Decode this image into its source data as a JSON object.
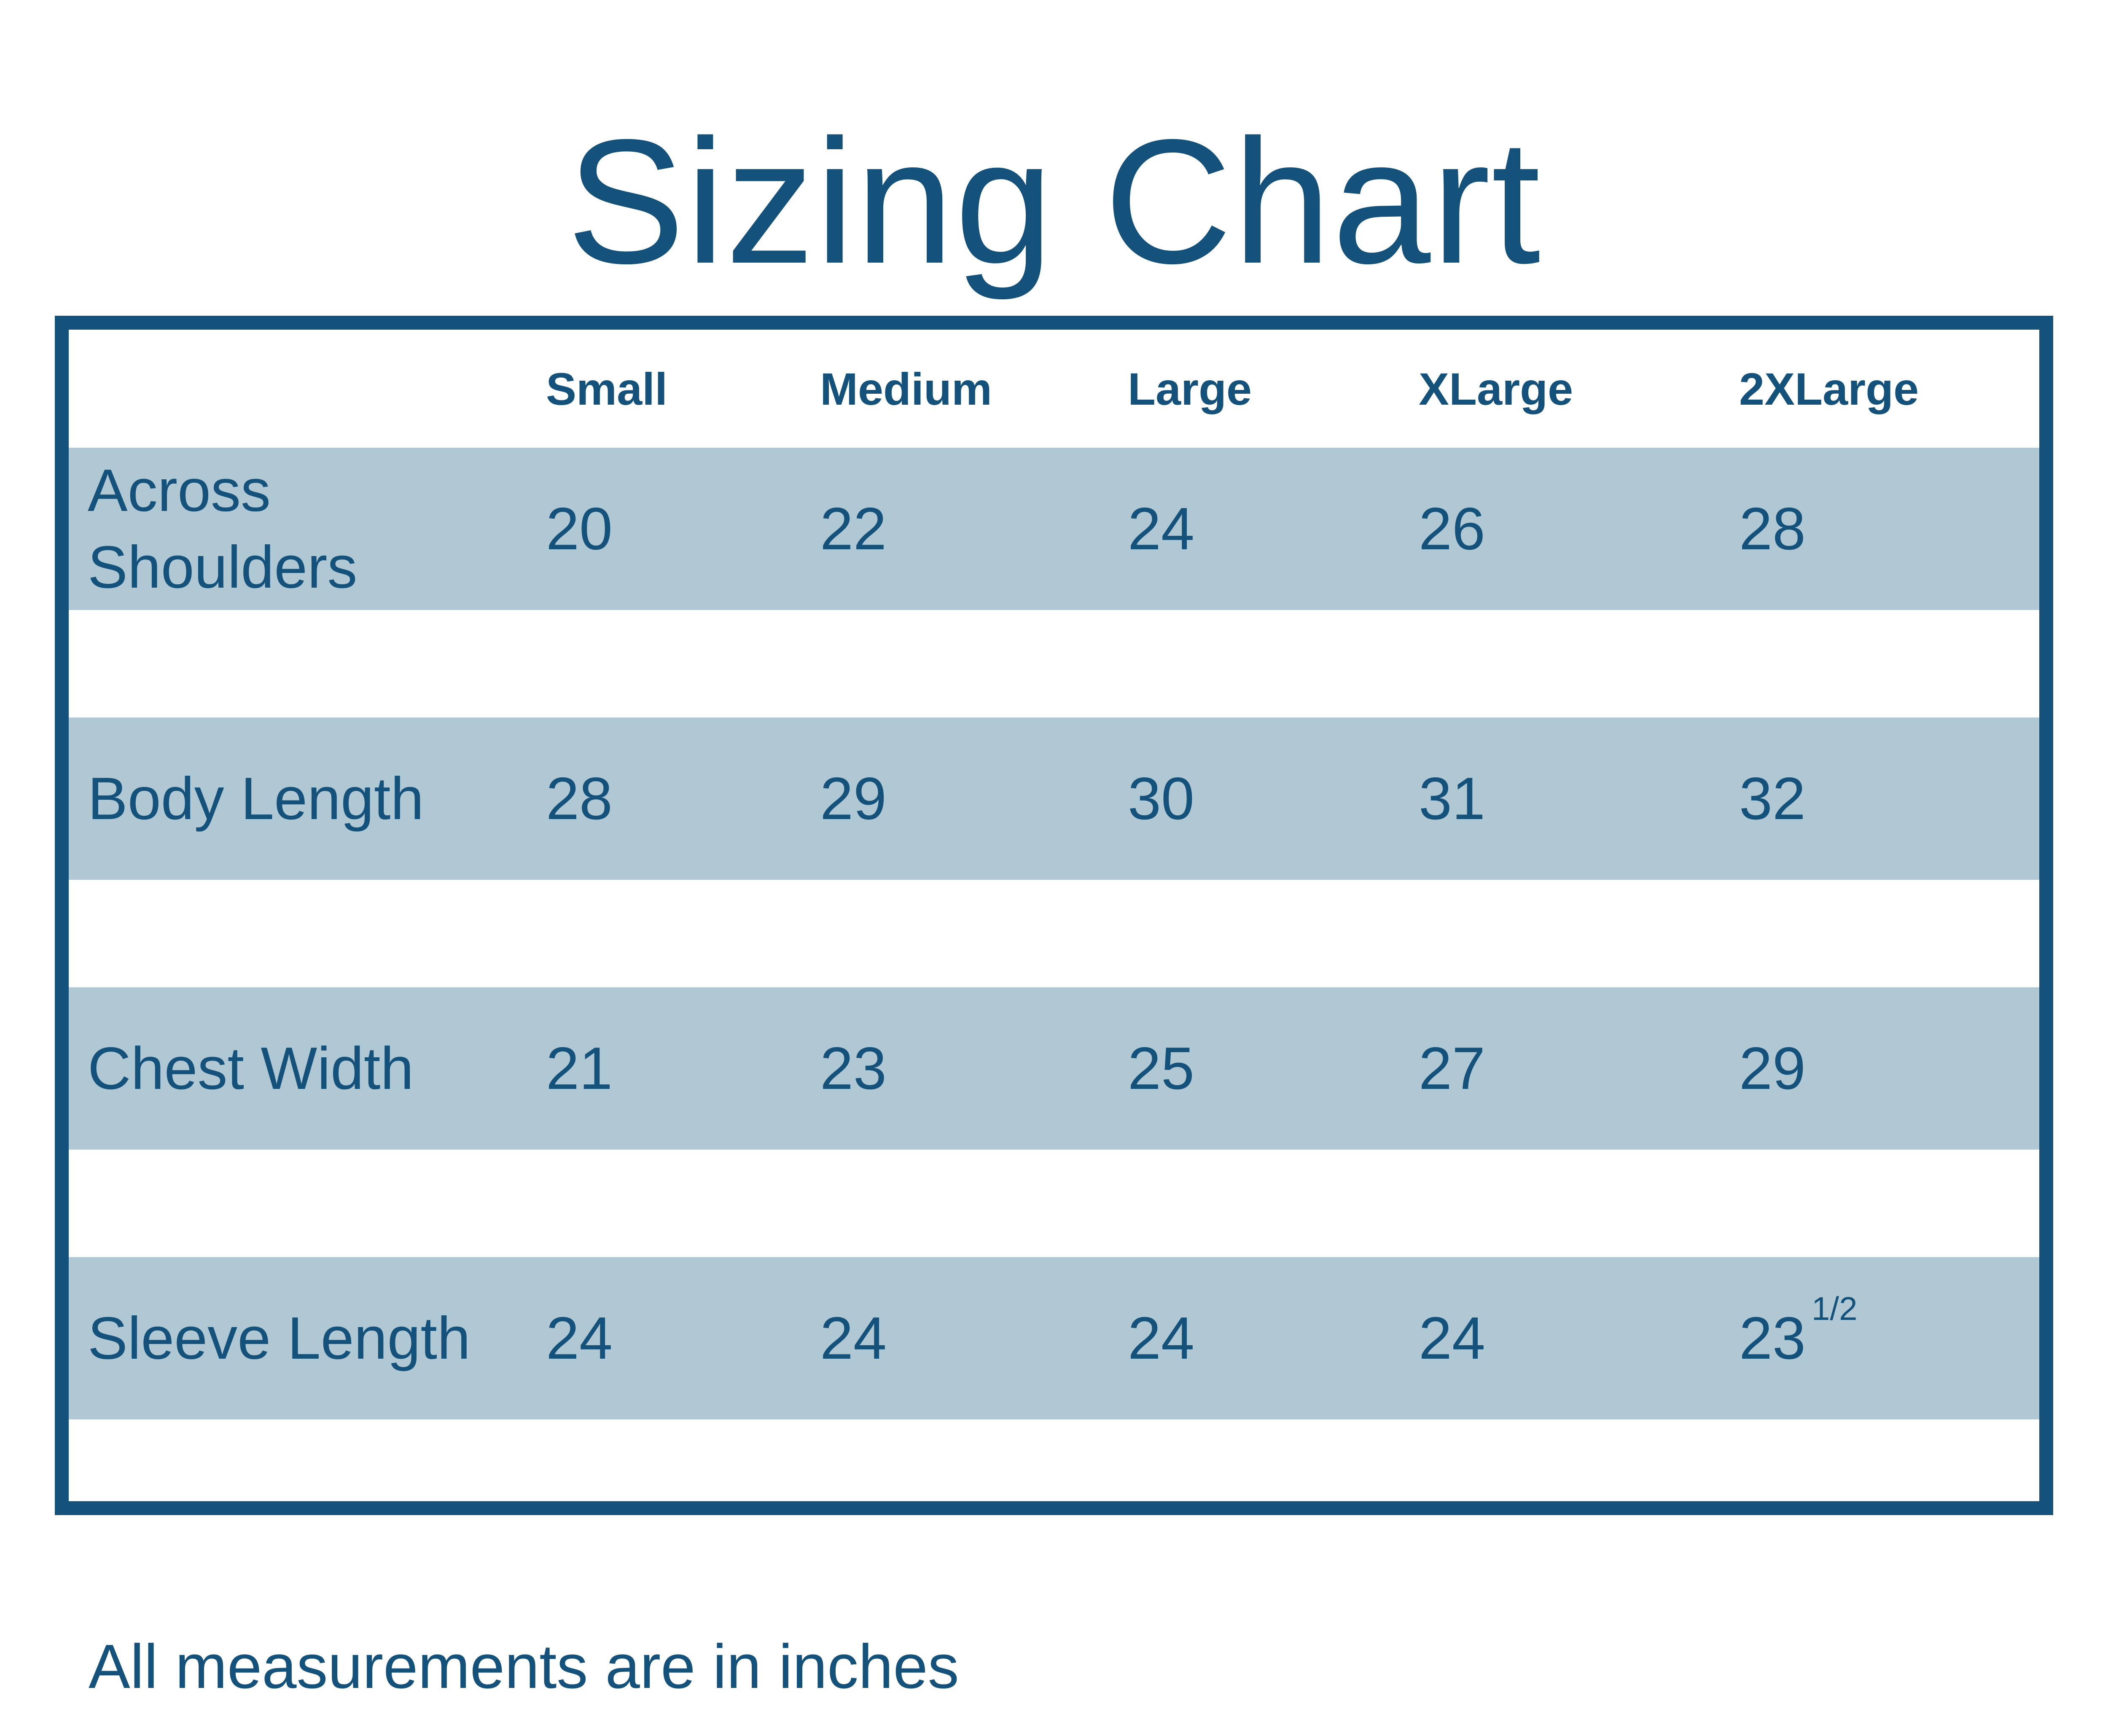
{
  "title": "Sizing Chart",
  "colors": {
    "primary_blue": "#14527b",
    "row_band_blue": "#afc8d4",
    "background": "#ffffff"
  },
  "table": {
    "columns": [
      "Small",
      "Medium",
      "Large",
      "XLarge",
      "2XLarge"
    ],
    "rows": [
      {
        "label": "Across Shoulders",
        "values": [
          "20",
          "22",
          "24",
          "26",
          "28"
        ]
      },
      {
        "label": "Body Length",
        "values": [
          "28",
          "29",
          "30",
          "31",
          "32"
        ]
      },
      {
        "label": "Chest Width",
        "values": [
          "21",
          "23",
          "25",
          "27",
          "29"
        ]
      },
      {
        "label": "Sleeve Length",
        "values": [
          "24",
          "24",
          "24",
          "24",
          "23"
        ],
        "last_value_superscript": "1/2"
      }
    ]
  },
  "footnote": "All measurements are in inches",
  "chart_data": {
    "type": "table",
    "title": "Sizing Chart",
    "columns": [
      "Small",
      "Medium",
      "Large",
      "XLarge",
      "2XLarge"
    ],
    "rows": [
      {
        "label": "Across Shoulders",
        "values": [
          20,
          22,
          24,
          26,
          28
        ]
      },
      {
        "label": "Body Length",
        "values": [
          28,
          29,
          30,
          31,
          32
        ]
      },
      {
        "label": "Chest Width",
        "values": [
          21,
          23,
          25,
          27,
          29
        ]
      },
      {
        "label": "Sleeve Length",
        "values": [
          24,
          24,
          24,
          24,
          23.5
        ]
      }
    ],
    "footnote": "All measurements are in inches"
  }
}
